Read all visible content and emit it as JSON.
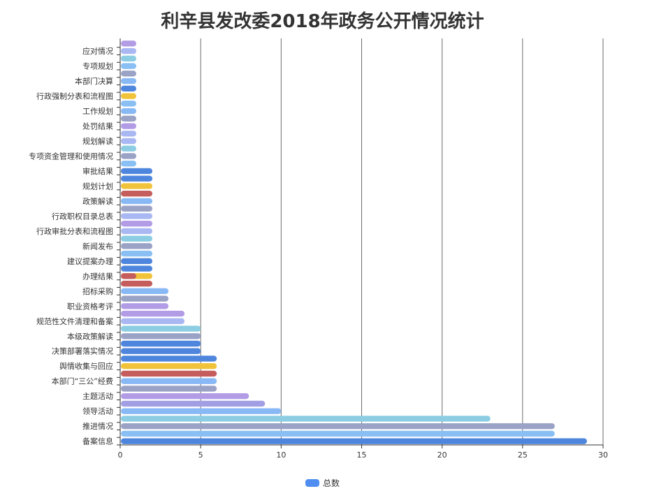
{
  "chart_data": {
    "type": "bar",
    "orientation": "horizontal",
    "title": "利辛县发改委2018年政务公开情况统计",
    "xlim": [
      0,
      30
    ],
    "xticks": [
      0,
      5,
      10,
      15,
      20,
      25,
      30
    ],
    "grid": true,
    "legend": "bottom-center",
    "series": [
      {
        "name": "总数",
        "color": "#4f8ef0"
      }
    ],
    "categories": [
      "备案信息",
      "",
      "推进情况",
      "",
      "领导活动",
      "",
      "主题活动",
      "",
      "本部门“三公”经费",
      "",
      "舆情收集与回应",
      "",
      "决策部署落实情况",
      "",
      "本级政策解读",
      "",
      "规范性文件清理和备案",
      "",
      "职业资格考评",
      "",
      "招标采购",
      "",
      "办理结果",
      "",
      "建议提案办理",
      "",
      "新闻发布",
      "",
      "行政审批分表和流程图",
      "",
      "行政职权目录总表",
      "",
      "政策解读",
      "",
      "规划计划",
      "",
      "审批结果",
      "",
      "专项资金管理和使用情况",
      "",
      "规划解读",
      "",
      "处罚结果",
      "",
      "工作规划",
      "",
      "行政强制分表和流程图",
      "",
      "本部门决算",
      "",
      "专项规划",
      "",
      "应对情况",
      ""
    ],
    "values": [
      29,
      27,
      27,
      23,
      10,
      9,
      8,
      6,
      6,
      6,
      6,
      6,
      5,
      5,
      5,
      5,
      4,
      4,
      3,
      3,
      3,
      2,
      2,
      2,
      2,
      2,
      2,
      2,
      2,
      2,
      2,
      2,
      2,
      2,
      2,
      2,
      2,
      1,
      1,
      1,
      1,
      1,
      1,
      1,
      1,
      1,
      1,
      1,
      1,
      1,
      1,
      1,
      1,
      1
    ],
    "colors": [
      "#4f86dd",
      "#89bff2",
      "#9aa2c5",
      "#8ccde3",
      "#89b9f5",
      "#a29ee3",
      "#b29ce6",
      "#9aa2c5",
      "#89b9f5",
      "#c55d5d",
      "#f0c33b",
      "#4f86dd",
      "#4f86dd",
      "#4f86dd",
      "#9aa2c5",
      "#8ccde3",
      "#a9b8f3",
      "#b29ce6",
      "#b29ce6",
      "#9aa2c5",
      "#89b9f5",
      "#c55d5d",
      "#f0c33b",
      "#4f86dd",
      "#4f86dd",
      "#89bff2",
      "#9aa2c5",
      "#8ccde3",
      "#a9b8f3",
      "#b29ce6",
      "#a9b8f3",
      "#9aa2c5",
      "#89b9f5",
      "#c55d5d",
      "#f0c33b",
      "#4f86dd",
      "#4f86dd",
      "#89bff2",
      "#9aa2c5",
      "#8ccde3",
      "#a9b8f3",
      "#a9b8f3",
      "#b29ce6",
      "#9aa2c5",
      "#89b9f5",
      "#89bff2",
      "#f0c33b",
      "#4f86dd",
      "#89b9f5",
      "#9aa2c5",
      "#89bff2",
      "#8ccde3",
      "#a9b8f3",
      "#b29ce6"
    ],
    "overlay": [
      {
        "category": "办理结果",
        "value": 1,
        "color": "#c55d5d"
      }
    ]
  }
}
